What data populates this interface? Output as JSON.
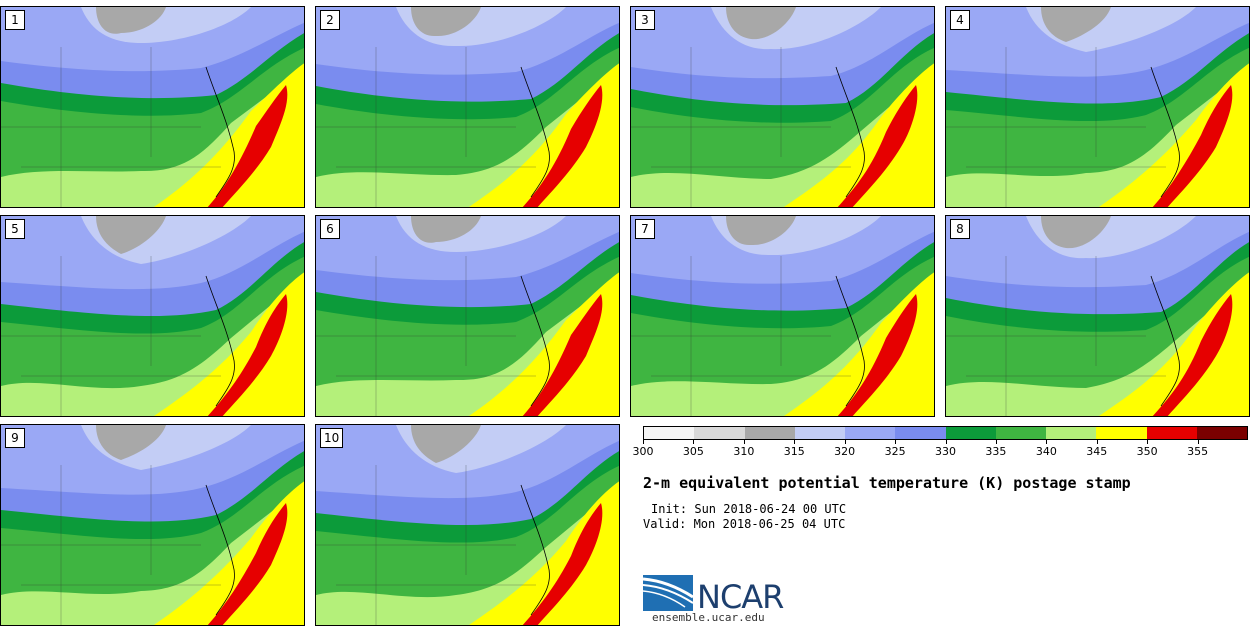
{
  "panels": [
    {
      "label": "1"
    },
    {
      "label": "2"
    },
    {
      "label": "3"
    },
    {
      "label": "4"
    },
    {
      "label": "5"
    },
    {
      "label": "6"
    },
    {
      "label": "7"
    },
    {
      "label": "8"
    },
    {
      "label": "9"
    },
    {
      "label": "10"
    }
  ],
  "colorbar": {
    "colors": [
      "#f5f5f5",
      "#d9d9d9",
      "#a8a8a8",
      "#c3cdf5",
      "#9aa8f5",
      "#7a8cef",
      "#0c9b3a",
      "#3fb541",
      "#b4f07a",
      "#ffff00",
      "#e60000",
      "#7a0000"
    ],
    "ticks": [
      "300",
      "305",
      "310",
      "315",
      "320",
      "325",
      "330",
      "335",
      "340",
      "345",
      "350",
      "355"
    ]
  },
  "title": "2-m equivalent potential temperature (K) postage stamp",
  "init": "Init: Sun 2018-06-24 00 UTC",
  "valid": "Valid: Mon 2018-06-25 04 UTC",
  "logo_text": "NCAR",
  "site": "ensemble.ucar.edu"
}
